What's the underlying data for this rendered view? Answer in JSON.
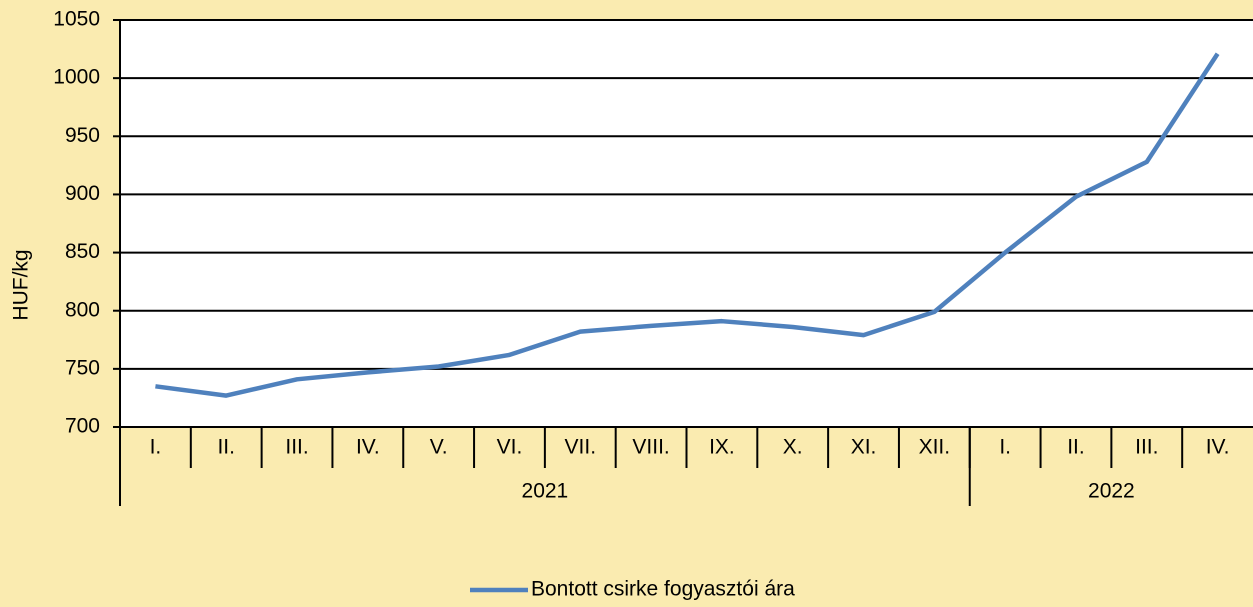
{
  "chart_data": {
    "type": "line",
    "y_label": "HUF/kg",
    "groups": [
      {
        "label": "2021",
        "categories": [
          "I.",
          "II.",
          "III.",
          "IV.",
          "V.",
          "VI.",
          "VII.",
          "VIII.",
          "IX.",
          "X.",
          "XI.",
          "XII."
        ]
      },
      {
        "label": "2022",
        "categories": [
          "I.",
          "II.",
          "III.",
          "IV."
        ]
      }
    ],
    "series": [
      {
        "name": "Bontott csirke fogyasztói ára",
        "color": "#4f81bd",
        "values": [
          735,
          727,
          741,
          747,
          752,
          762,
          782,
          787,
          791,
          786,
          779,
          799,
          850,
          898,
          928,
          1021
        ]
      }
    ],
    "ylim": [
      700,
      1050
    ],
    "yticks": [
      700,
      750,
      800,
      850,
      900,
      950,
      1000,
      1050
    ],
    "grid": true,
    "legend": "bottom"
  }
}
